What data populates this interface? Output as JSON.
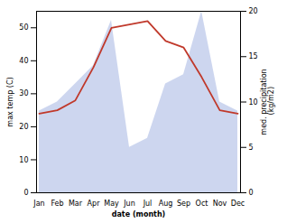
{
  "chart_data": {
    "type": "line",
    "categories": [
      "Jan",
      "Feb",
      "Mar",
      "Apr",
      "May",
      "Jun",
      "Jul",
      "Aug",
      "Sep",
      "Oct",
      "Nov",
      "Dec"
    ],
    "xlabel": "date (month)",
    "ylabel": "max temp (C)",
    "y2label": "med. precipitation\n (kg/m2)",
    "ylim": [
      0,
      55
    ],
    "yticks": [
      0,
      10,
      20,
      30,
      40,
      50
    ],
    "y2lim": [
      0,
      20
    ],
    "y2ticks": [
      0,
      5,
      10,
      15,
      20
    ],
    "grid": false,
    "series": [
      {
        "type": "line",
        "color": "#c0392b",
        "values": [
          24,
          25,
          28,
          38,
          50,
          51,
          52,
          46,
          44,
          35,
          25,
          24
        ]
      },
      {
        "type": "area",
        "axis": "y2",
        "color": "#b8c4e8",
        "values": [
          9,
          10,
          12,
          14,
          19,
          5,
          6,
          12,
          13,
          20,
          10,
          9
        ]
      }
    ]
  }
}
